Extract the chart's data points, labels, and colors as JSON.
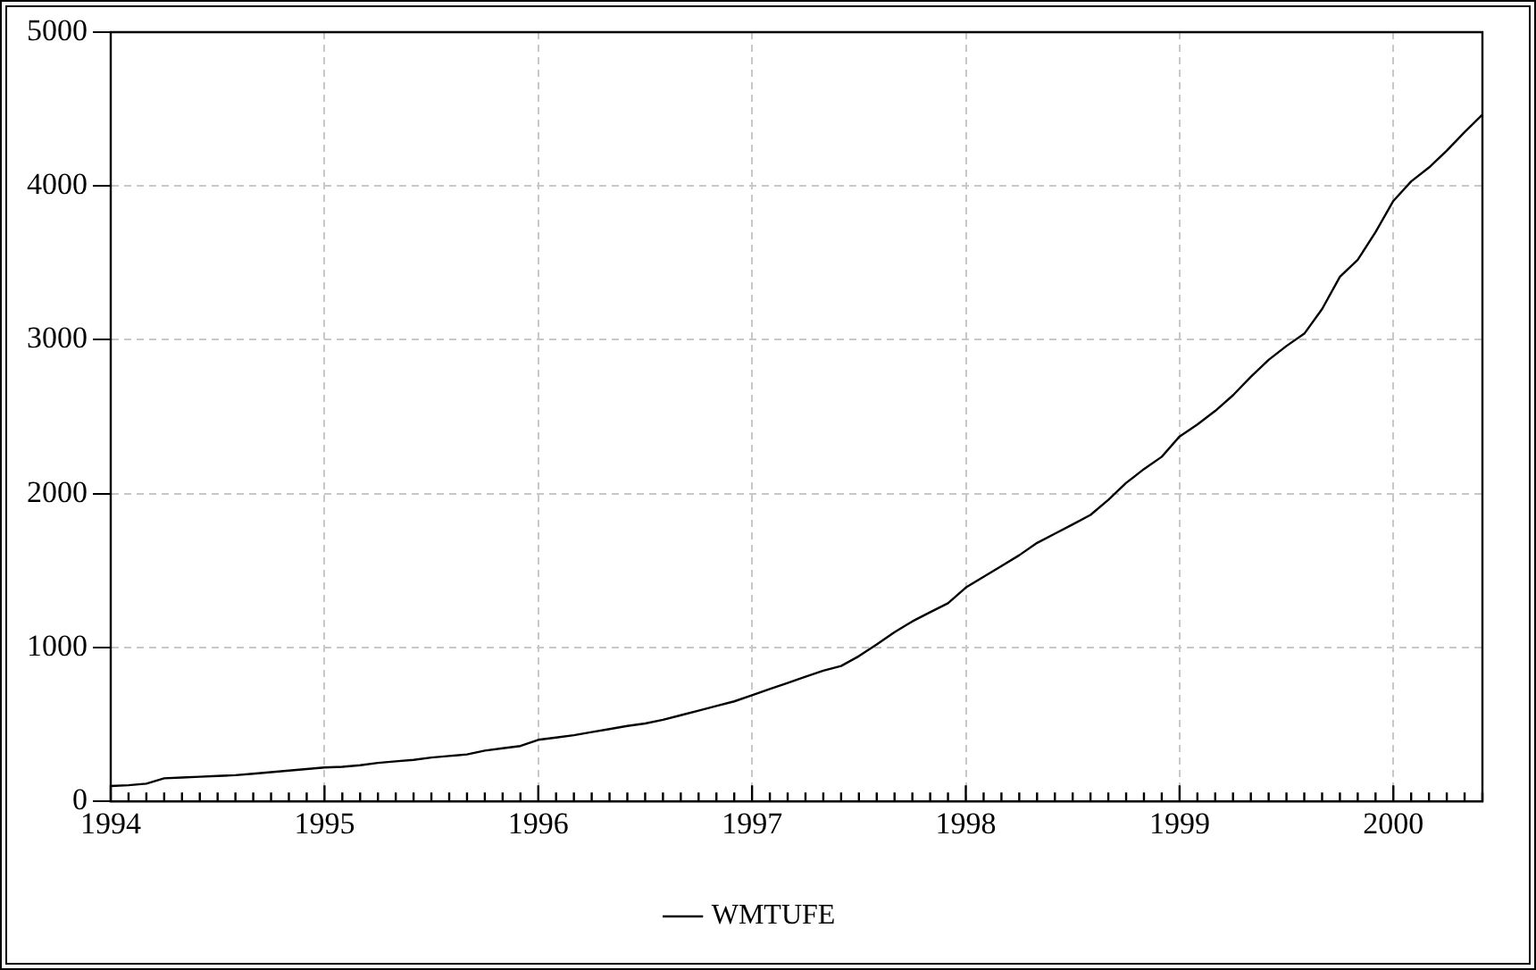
{
  "chart_data": {
    "type": "line",
    "x": [
      "1994-01",
      "1994-02",
      "1994-03",
      "1994-04",
      "1994-05",
      "1994-06",
      "1994-07",
      "1994-08",
      "1994-09",
      "1994-10",
      "1994-11",
      "1994-12",
      "1995-01",
      "1995-02",
      "1995-03",
      "1995-04",
      "1995-05",
      "1995-06",
      "1995-07",
      "1995-08",
      "1995-09",
      "1995-10",
      "1995-11",
      "1995-12",
      "1996-01",
      "1996-02",
      "1996-03",
      "1996-04",
      "1996-05",
      "1996-06",
      "1996-07",
      "1996-08",
      "1996-09",
      "1996-10",
      "1996-11",
      "1996-12",
      "1997-01",
      "1997-02",
      "1997-03",
      "1997-04",
      "1997-05",
      "1997-06",
      "1997-07",
      "1997-08",
      "1997-09",
      "1997-10",
      "1997-11",
      "1997-12",
      "1998-01",
      "1998-02",
      "1998-03",
      "1998-04",
      "1998-05",
      "1998-06",
      "1998-07",
      "1998-08",
      "1998-09",
      "1998-10",
      "1998-11",
      "1998-12",
      "1999-01",
      "1999-02",
      "1999-03",
      "1999-04",
      "1999-05",
      "1999-06",
      "1999-07",
      "1999-08",
      "1999-09",
      "1999-10",
      "1999-11",
      "1999-12",
      "2000-01",
      "2000-02",
      "2000-03",
      "2000-04",
      "2000-05",
      "2000-06"
    ],
    "series": [
      {
        "name": "WMTUFE",
        "color": "#000000",
        "values": [
          100,
          105,
          115,
          150,
          155,
          160,
          165,
          170,
          180,
          190,
          200,
          210,
          220,
          225,
          235,
          250,
          260,
          270,
          285,
          295,
          305,
          330,
          345,
          360,
          400,
          415,
          430,
          450,
          470,
          490,
          506,
          530,
          560,
          590,
          620,
          650,
          690,
          730,
          770,
          810,
          850,
          880,
          944,
          1020,
          1100,
          1170,
          1230,
          1288,
          1390,
          1460,
          1530,
          1600,
          1680,
          1740,
          1800,
          1862,
          1960,
          2070,
          2160,
          2240,
          2372,
          2450,
          2538,
          2640,
          2760,
          2870,
          2960,
          3040,
          3200,
          3410,
          3520,
          3700,
          3903,
          4030,
          4120,
          4230,
          4350,
          4464
        ]
      }
    ],
    "xlim": [
      "1994-01",
      "2000-06"
    ],
    "xticks": [
      "1994",
      "1995",
      "1996",
      "1997",
      "1998",
      "1999",
      "2000"
    ],
    "ylim": [
      0,
      5000
    ],
    "yticks": [
      0,
      1000,
      2000,
      3000,
      4000,
      5000
    ],
    "grid": true,
    "legend": "bottom",
    "marker": "none",
    "line_style": "solid"
  }
}
